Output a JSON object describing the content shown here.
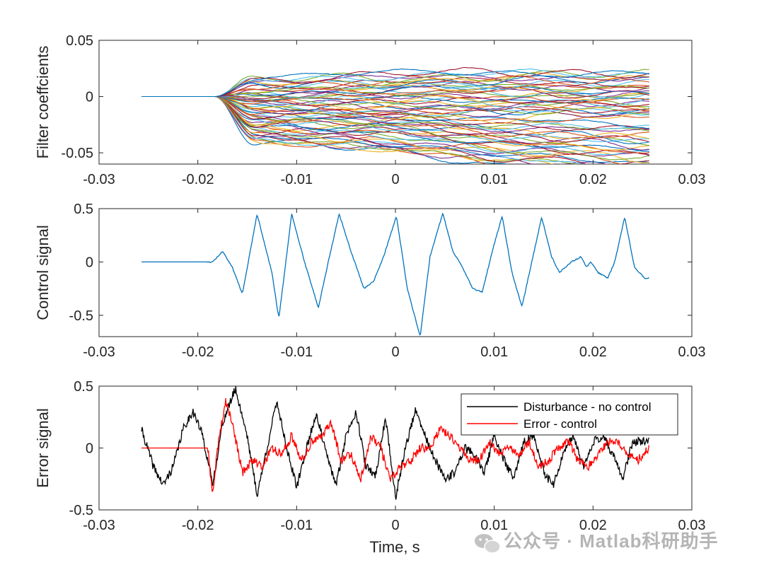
{
  "figure": {
    "xlabel": "Time, s",
    "watermark": "公众号 · Matlab科研助手"
  },
  "chart_data": [
    {
      "type": "line",
      "ylabel": "Filter coeffcients",
      "xlim": [
        -0.03,
        0.03
      ],
      "ylim": [
        -0.06,
        0.05
      ],
      "xticks": [
        -0.03,
        -0.02,
        -0.01,
        0,
        0.01,
        0.02,
        0.03
      ],
      "xtick_labels": [
        "-0.03",
        "-0.02",
        "-0.01",
        "0",
        "0.01",
        "0.02",
        "0.03"
      ],
      "yticks": [
        0.05,
        0,
        -0.05
      ],
      "ytick_labels": [
        "0.05",
        "0",
        "-0.05"
      ],
      "description_series_count": 64,
      "t_start": -0.0257,
      "t_zero_until": -0.0183,
      "t_end": 0.0257,
      "final_value_range": [
        -0.056,
        0.023
      ],
      "colors": [
        "#0072BD",
        "#D95319",
        "#EDB120",
        "#7E2F8E",
        "#77AC30",
        "#4DBEEE",
        "#A2142F"
      ]
    },
    {
      "type": "line",
      "ylabel": "Control signal",
      "xlim": [
        -0.03,
        0.03
      ],
      "ylim": [
        -0.7,
        0.5
      ],
      "xticks": [
        -0.03,
        -0.02,
        -0.01,
        0,
        0.01,
        0.02,
        0.03
      ],
      "xtick_labels": [
        "-0.03",
        "-0.02",
        "-0.01",
        "0",
        "0.01",
        "0.02",
        "0.03"
      ],
      "yticks": [
        0.5,
        0,
        -0.5
      ],
      "ytick_labels": [
        "0.5",
        "0",
        "-0.5"
      ],
      "series": [
        {
          "name": "Control signal",
          "color": "#0072BD",
          "x": [
            -0.0257,
            -0.0185,
            -0.0175,
            -0.0165,
            -0.0155,
            -0.014,
            -0.0125,
            -0.0118,
            -0.0105,
            -0.0092,
            -0.0078,
            -0.0068,
            -0.0057,
            -0.0045,
            -0.0032,
            -0.0022,
            -0.0012,
            0.0001,
            0.0012,
            0.0025,
            0.0035,
            0.0048,
            0.0058,
            0.0068,
            0.0078,
            0.0088,
            0.0098,
            0.0108,
            0.0118,
            0.0128,
            0.0138,
            0.0148,
            0.0158,
            0.0166,
            0.0178,
            0.0188,
            0.0193,
            0.0198,
            0.0205,
            0.0215,
            0.0222,
            0.0232,
            0.0242,
            0.0252,
            0.0257
          ],
          "y": [
            0,
            0,
            0.1,
            -0.05,
            -0.3,
            0.45,
            -0.1,
            -0.53,
            0.45,
            0.0,
            -0.43,
            0.0,
            0.45,
            0.1,
            -0.25,
            -0.18,
            0.05,
            0.43,
            -0.25,
            -0.7,
            0.05,
            0.46,
            0.1,
            -0.05,
            -0.25,
            -0.28,
            0.1,
            0.43,
            -0.1,
            -0.42,
            0.0,
            0.42,
            0.05,
            -0.1,
            0.0,
            0.05,
            -0.05,
            0.0,
            -0.1,
            -0.15,
            0.0,
            0.42,
            -0.05,
            -0.15,
            -0.15
          ]
        }
      ]
    },
    {
      "type": "line",
      "ylabel": "Error signal",
      "xlim": [
        -0.03,
        0.03
      ],
      "ylim": [
        -0.5,
        0.5
      ],
      "xticks": [
        -0.03,
        -0.02,
        -0.01,
        0,
        0.01,
        0.02,
        0.03
      ],
      "xtick_labels": [
        "-0.03",
        "-0.02",
        "-0.01",
        "0",
        "0.01",
        "0.02",
        "0.03"
      ],
      "yticks": [
        0.5,
        0,
        -0.5
      ],
      "ytick_labels": [
        "0.5",
        "0",
        "-0.5"
      ],
      "legend": {
        "location": "top-right",
        "entries": [
          "Disturbance - no control",
          "Error - control"
        ]
      },
      "series": [
        {
          "name": "Disturbance - no control",
          "color": "#000000",
          "x": [
            -0.0257,
            -0.0245,
            -0.0235,
            -0.0225,
            -0.0215,
            -0.0205,
            -0.0195,
            -0.0185,
            -0.0175,
            -0.0162,
            -0.015,
            -0.014,
            -0.013,
            -0.012,
            -0.011,
            -0.01,
            -0.009,
            -0.008,
            -0.007,
            -0.006,
            -0.005,
            -0.004,
            -0.003,
            -0.002,
            -0.001,
            0.0,
            0.001,
            0.002,
            0.003,
            0.004,
            0.005,
            0.006,
            0.007,
            0.008,
            0.009,
            0.01,
            0.011,
            0.012,
            0.013,
            0.014,
            0.015,
            0.016,
            0.017,
            0.018,
            0.019,
            0.02,
            0.021,
            0.022,
            0.023,
            0.024,
            0.0257
          ],
          "y": [
            0.15,
            -0.15,
            -0.3,
            -0.15,
            0.15,
            0.3,
            0.1,
            -0.3,
            0.2,
            0.48,
            0.1,
            -0.38,
            0.0,
            0.38,
            0.0,
            -0.32,
            0.0,
            0.28,
            -0.05,
            -0.3,
            0.1,
            0.3,
            -0.15,
            -0.22,
            0.25,
            -0.4,
            0.0,
            0.3,
            0.1,
            -0.1,
            -0.25,
            -0.2,
            0.0,
            -0.05,
            -0.2,
            0.1,
            -0.1,
            -0.25,
            0.05,
            0.1,
            -0.2,
            -0.3,
            -0.05,
            0.1,
            -0.15,
            0.05,
            0.1,
            -0.05,
            -0.25,
            0.05,
            0.05
          ]
        },
        {
          "name": "Error - control",
          "color": "#FF0000",
          "x": [
            -0.0257,
            -0.019,
            -0.0185,
            -0.018,
            -0.0172,
            -0.0165,
            -0.0155,
            -0.0145,
            -0.0135,
            -0.0125,
            -0.0115,
            -0.0105,
            -0.0095,
            -0.0085,
            -0.0075,
            -0.0065,
            -0.0055,
            -0.0045,
            -0.0035,
            -0.0025,
            -0.0015,
            -0.0005,
            0.0005,
            0.0015,
            0.0025,
            0.0035,
            0.0045,
            0.0055,
            0.0065,
            0.0075,
            0.0085,
            0.0095,
            0.0105,
            0.0115,
            0.0125,
            0.0135,
            0.0145,
            0.0155,
            0.0165,
            0.0175,
            0.0185,
            0.0195,
            0.0205,
            0.0215,
            0.0225,
            0.0235,
            0.0245,
            0.0257
          ],
          "y": [
            0,
            0,
            -0.38,
            0.0,
            0.38,
            0.2,
            -0.2,
            -0.1,
            -0.15,
            0.0,
            -0.05,
            0.1,
            -0.1,
            0.05,
            0.1,
            0.2,
            -0.1,
            -0.05,
            -0.25,
            0.1,
            0.0,
            -0.25,
            -0.15,
            -0.1,
            0.0,
            0.0,
            0.15,
            0.1,
            0.0,
            -0.1,
            -0.1,
            0.05,
            -0.05,
            0.0,
            -0.05,
            0.05,
            -0.15,
            -0.1,
            0.0,
            0.05,
            -0.1,
            -0.15,
            -0.05,
            0.05,
            0.05,
            -0.05,
            -0.1,
            0.0
          ]
        }
      ]
    }
  ]
}
